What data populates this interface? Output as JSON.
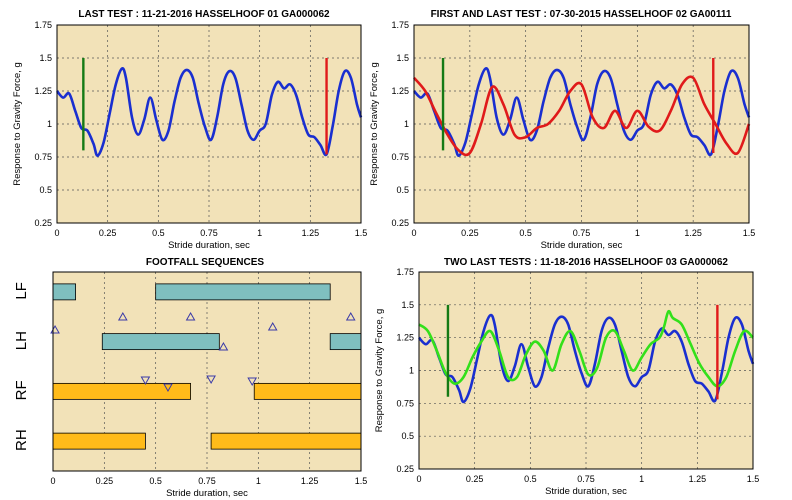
{
  "colors": {
    "plot_bg": "#f2e2b8",
    "grid": "#555555",
    "blue": "#1a2fd0",
    "red": "#e01a1a",
    "green_marker": "#157a15",
    "light_green": "#33e01a",
    "teal": "#7fbfbf",
    "orange": "#ffbb1a",
    "triangle": "#3a3aa8"
  },
  "chart_data": [
    {
      "id": "p1",
      "type": "line",
      "title": "LAST TEST : 11-21-2016 HASSELHOOF 01 GA000062",
      "xlabel": "Stride duration, sec",
      "ylabel": "Response to Gravity Force, g",
      "xlim": [
        0,
        1.5
      ],
      "ylim": [
        0.25,
        1.75
      ],
      "xticks": [
        0,
        0.25,
        0.5,
        0.75,
        1,
        1.25,
        1.5
      ],
      "yticks": [
        0.25,
        0.5,
        0.75,
        1,
        1.25,
        1.5,
        1.75
      ],
      "xtick_labels": [
        "0",
        "0.25",
        "0.5",
        "0.75",
        "1",
        "1.25",
        "1.5"
      ],
      "ytick_labels": [
        "0.25",
        "0.5",
        "0.75",
        "1",
        "1.25",
        "1.5",
        "1.75"
      ],
      "grid": true,
      "series": [
        {
          "color": "blue",
          "x": [
            0,
            0.03,
            0.06,
            0.09,
            0.12,
            0.15,
            0.18,
            0.2,
            0.23,
            0.26,
            0.29,
            0.32,
            0.34,
            0.37,
            0.4,
            0.43,
            0.46,
            0.49,
            0.52,
            0.55,
            0.58,
            0.61,
            0.64,
            0.67,
            0.7,
            0.73,
            0.76,
            0.79,
            0.82,
            0.85,
            0.88,
            0.91,
            0.94,
            0.97,
            1.0,
            1.03,
            1.06,
            1.09,
            1.12,
            1.15,
            1.18,
            1.21,
            1.24,
            1.27,
            1.3,
            1.33,
            1.36,
            1.39,
            1.42,
            1.45,
            1.48,
            1.5
          ],
          "y": [
            1.25,
            1.2,
            1.23,
            1.1,
            0.97,
            0.95,
            0.85,
            0.76,
            0.86,
            1.08,
            1.3,
            1.42,
            1.35,
            1.05,
            0.92,
            1.03,
            1.2,
            1.03,
            0.88,
            0.95,
            1.17,
            1.35,
            1.41,
            1.35,
            1.15,
            0.98,
            0.88,
            1.05,
            1.3,
            1.4,
            1.35,
            1.15,
            0.95,
            0.88,
            0.95,
            1.0,
            1.22,
            1.32,
            1.27,
            1.3,
            1.22,
            1.05,
            0.92,
            0.9,
            0.84,
            0.77,
            0.98,
            1.25,
            1.4,
            1.35,
            1.15,
            1.05
          ]
        }
      ],
      "markers": [
        {
          "x": 0.13,
          "y0": 0.8,
          "y1": 1.5,
          "color": "green_marker"
        },
        {
          "x": 1.33,
          "y0": 0.77,
          "y1": 1.5,
          "color": "red"
        }
      ]
    },
    {
      "id": "p2",
      "type": "line",
      "title": "FIRST AND LAST TEST : 07-30-2015 HASSELHOOF 02 GA00111",
      "xlabel": "Stride duration, sec",
      "ylabel": "Response to Gravity Force, g",
      "xlim": [
        0,
        1.5
      ],
      "ylim": [
        0.25,
        1.75
      ],
      "xticks": [
        0,
        0.25,
        0.5,
        0.75,
        1,
        1.25,
        1.5
      ],
      "yticks": [
        0.25,
        0.5,
        0.75,
        1,
        1.25,
        1.5,
        1.75
      ],
      "xtick_labels": [
        "0",
        "0.25",
        "0.5",
        "0.75",
        "1",
        "1.25",
        "1.5"
      ],
      "ytick_labels": [
        "0.25",
        "0.5",
        "0.75",
        "1",
        "1.25",
        "1.5",
        "1.75"
      ],
      "grid": true,
      "series": [
        {
          "color": "blue",
          "x": [
            0,
            0.03,
            0.06,
            0.09,
            0.12,
            0.15,
            0.18,
            0.2,
            0.23,
            0.26,
            0.29,
            0.32,
            0.34,
            0.37,
            0.4,
            0.43,
            0.46,
            0.49,
            0.52,
            0.55,
            0.58,
            0.61,
            0.64,
            0.67,
            0.7,
            0.73,
            0.76,
            0.79,
            0.82,
            0.85,
            0.88,
            0.91,
            0.94,
            0.97,
            1.0,
            1.03,
            1.06,
            1.09,
            1.12,
            1.15,
            1.18,
            1.21,
            1.24,
            1.27,
            1.3,
            1.33,
            1.36,
            1.39,
            1.42,
            1.45,
            1.48,
            1.5
          ],
          "y": [
            1.25,
            1.2,
            1.23,
            1.1,
            0.97,
            0.95,
            0.85,
            0.76,
            0.86,
            1.08,
            1.3,
            1.42,
            1.35,
            1.05,
            0.92,
            1.03,
            1.2,
            1.03,
            0.88,
            0.95,
            1.17,
            1.35,
            1.41,
            1.35,
            1.15,
            0.98,
            0.88,
            1.05,
            1.3,
            1.4,
            1.35,
            1.15,
            0.95,
            0.88,
            0.95,
            1.0,
            1.22,
            1.32,
            1.27,
            1.3,
            1.22,
            1.05,
            0.92,
            0.9,
            0.84,
            0.77,
            0.98,
            1.25,
            1.4,
            1.35,
            1.15,
            1.05
          ]
        },
        {
          "color": "red",
          "x": [
            0,
            0.05,
            0.1,
            0.15,
            0.2,
            0.25,
            0.3,
            0.35,
            0.4,
            0.45,
            0.5,
            0.55,
            0.6,
            0.65,
            0.7,
            0.75,
            0.8,
            0.85,
            0.9,
            0.95,
            1.0,
            1.05,
            1.1,
            1.15,
            1.2,
            1.25,
            1.3,
            1.35,
            1.4,
            1.45,
            1.5
          ],
          "y": [
            1.35,
            1.25,
            1.08,
            0.92,
            0.8,
            0.78,
            1.0,
            1.28,
            1.15,
            0.92,
            0.9,
            0.97,
            1.0,
            1.1,
            1.25,
            1.3,
            1.05,
            0.97,
            1.1,
            0.97,
            1.1,
            0.98,
            0.95,
            1.1,
            1.3,
            1.35,
            1.15,
            1.0,
            0.85,
            0.78,
            1.0
          ]
        }
      ],
      "markers": [
        {
          "x": 0.13,
          "y0": 0.8,
          "y1": 1.5,
          "color": "green_marker"
        },
        {
          "x": 1.34,
          "y0": 0.78,
          "y1": 1.5,
          "color": "red"
        }
      ]
    },
    {
      "id": "p3",
      "type": "gantt",
      "title": "FOOTFALL SEQUENCES",
      "xlabel": "Stride duration, sec",
      "xlim": [
        0,
        1.5
      ],
      "xticks": [
        0,
        0.25,
        0.5,
        0.75,
        1,
        1.25,
        1.5
      ],
      "xtick_labels": [
        "0",
        "0.25",
        "0.5",
        "0.75",
        "1",
        "1.25",
        "1.5"
      ],
      "grid": true,
      "rows": [
        "LF",
        "LH",
        "RF",
        "RH"
      ],
      "bars": [
        {
          "row": "LF",
          "start": 0.0,
          "end": 0.11,
          "color": "teal"
        },
        {
          "row": "LF",
          "start": 0.5,
          "end": 1.35,
          "color": "teal"
        },
        {
          "row": "LH",
          "start": 0.24,
          "end": 0.81,
          "color": "teal"
        },
        {
          "row": "LH",
          "start": 1.35,
          "end": 1.5,
          "color": "teal"
        },
        {
          "row": "RF",
          "start": 0.0,
          "end": 0.67,
          "color": "orange"
        },
        {
          "row": "RF",
          "start": 0.98,
          "end": 1.5,
          "color": "orange"
        },
        {
          "row": "RH",
          "start": 0.0,
          "end": 0.45,
          "color": "orange"
        },
        {
          "row": "RH",
          "start": 0.77,
          "end": 1.5,
          "color": "orange"
        }
      ],
      "events_up": [
        0.01,
        0.34,
        0.67,
        1.07,
        1.45,
        0.83
      ],
      "events_down": [
        0.45,
        0.56,
        0.77,
        0.97
      ]
    },
    {
      "id": "p4",
      "type": "line",
      "title": "TWO LAST TESTS : 11-18-2016 HASSELHOOF 03 GA000062",
      "xlabel": "Stride duration, sec",
      "ylabel": "Response to Gravity Force, g",
      "xlim": [
        0,
        1.5
      ],
      "ylim": [
        0.25,
        1.75
      ],
      "xticks": [
        0,
        0.25,
        0.5,
        0.75,
        1,
        1.25,
        1.5
      ],
      "yticks": [
        0.25,
        0.5,
        0.75,
        1,
        1.25,
        1.5,
        1.75
      ],
      "xtick_labels": [
        "0",
        "0.25",
        "0.5",
        "0.75",
        "1",
        "1.25",
        "1.5"
      ],
      "ytick_labels": [
        "0.25",
        "0.5",
        "0.75",
        "1",
        "1.25",
        "1.5",
        "1.75"
      ],
      "grid": true,
      "series": [
        {
          "color": "blue",
          "x": [
            0,
            0.03,
            0.06,
            0.09,
            0.12,
            0.15,
            0.18,
            0.2,
            0.23,
            0.26,
            0.29,
            0.32,
            0.34,
            0.37,
            0.4,
            0.43,
            0.46,
            0.49,
            0.52,
            0.55,
            0.58,
            0.61,
            0.64,
            0.67,
            0.7,
            0.73,
            0.76,
            0.79,
            0.82,
            0.85,
            0.88,
            0.91,
            0.94,
            0.97,
            1.0,
            1.03,
            1.06,
            1.09,
            1.12,
            1.15,
            1.18,
            1.21,
            1.24,
            1.27,
            1.3,
            1.33,
            1.36,
            1.39,
            1.42,
            1.45,
            1.48,
            1.5
          ],
          "y": [
            1.25,
            1.2,
            1.23,
            1.1,
            0.97,
            0.95,
            0.85,
            0.76,
            0.86,
            1.08,
            1.3,
            1.42,
            1.35,
            1.05,
            0.92,
            1.03,
            1.2,
            1.03,
            0.88,
            0.95,
            1.17,
            1.35,
            1.41,
            1.35,
            1.15,
            0.98,
            0.88,
            1.05,
            1.3,
            1.4,
            1.35,
            1.15,
            0.95,
            0.88,
            0.95,
            1.0,
            1.22,
            1.32,
            1.27,
            1.3,
            1.22,
            1.05,
            0.92,
            0.9,
            0.84,
            0.77,
            0.98,
            1.25,
            1.4,
            1.35,
            1.15,
            1.05
          ]
        },
        {
          "color": "light_green",
          "x": [
            0,
            0.04,
            0.08,
            0.12,
            0.16,
            0.2,
            0.24,
            0.28,
            0.32,
            0.36,
            0.4,
            0.44,
            0.48,
            0.52,
            0.56,
            0.6,
            0.64,
            0.68,
            0.72,
            0.76,
            0.8,
            0.84,
            0.88,
            0.92,
            0.96,
            1.0,
            1.04,
            1.08,
            1.1,
            1.12,
            1.14,
            1.18,
            1.22,
            1.26,
            1.3,
            1.34,
            1.38,
            1.42,
            1.46,
            1.5
          ],
          "y": [
            1.35,
            1.3,
            1.15,
            0.98,
            0.9,
            0.95,
            1.1,
            1.22,
            1.3,
            1.15,
            0.95,
            0.95,
            1.12,
            1.22,
            1.15,
            1.0,
            1.2,
            1.3,
            1.15,
            0.97,
            1.02,
            1.25,
            1.3,
            1.15,
            1.0,
            1.1,
            1.2,
            1.25,
            1.33,
            1.45,
            1.4,
            1.35,
            1.2,
            1.05,
            0.95,
            0.88,
            0.95,
            1.15,
            1.3,
            1.25
          ]
        }
      ],
      "markers": [
        {
          "x": 0.13,
          "y0": 0.8,
          "y1": 1.5,
          "color": "green_marker"
        },
        {
          "x": 1.34,
          "y0": 0.78,
          "y1": 1.5,
          "color": "red"
        }
      ]
    }
  ]
}
